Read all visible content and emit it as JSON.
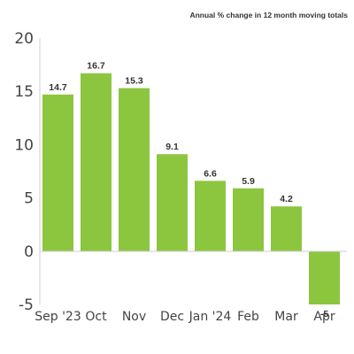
{
  "chart_data": {
    "type": "bar",
    "subtitle": "Annual % change in 12 month moving totals",
    "categories": [
      "Sep '23",
      "Oct",
      "Nov",
      "Dec",
      "Jan '24",
      "Feb",
      "Mar",
      "Apr"
    ],
    "values": [
      14.7,
      16.7,
      15.3,
      9.1,
      6.6,
      5.9,
      4.2,
      -5
    ],
    "data_labels": [
      "14.7",
      "16.7",
      "15.3",
      "9.1",
      "6.6",
      "5.9",
      "4.2",
      "-5"
    ],
    "yticks": [
      "20",
      "15",
      "10",
      "5",
      "0",
      "-5"
    ],
    "ylim": [
      -5,
      20
    ],
    "grid": false,
    "bar_color": "#8cc63f"
  }
}
